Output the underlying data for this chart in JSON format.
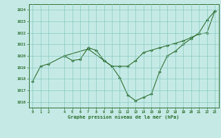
{
  "line1_x": [
    0,
    1,
    2,
    4,
    5,
    6,
    7,
    8,
    9,
    10,
    11,
    12,
    13,
    14,
    15,
    16,
    17,
    18,
    19,
    20,
    21,
    22,
    23
  ],
  "line1_y": [
    1017.8,
    1019.1,
    1019.3,
    1020.0,
    1019.6,
    1019.7,
    1020.7,
    1020.5,
    1019.6,
    1019.1,
    1018.1,
    1016.6,
    1016.1,
    1016.4,
    1016.7,
    1018.6,
    1020.0,
    1020.4,
    1021.0,
    1021.5,
    1022.0,
    1023.1,
    1023.9
  ],
  "line2_x": [
    4,
    7,
    9,
    10,
    11,
    12,
    13,
    14,
    15,
    16,
    17,
    18,
    19,
    20,
    21,
    22,
    23
  ],
  "line2_y": [
    1020.0,
    1020.6,
    1019.6,
    1019.1,
    1019.1,
    1019.1,
    1019.6,
    1020.3,
    1020.5,
    1020.7,
    1020.9,
    1021.1,
    1021.3,
    1021.6,
    1021.9,
    1022.0,
    1023.9
  ],
  "line_color": "#2d6e2d",
  "bg_color": "#c5eae6",
  "grid_color": "#88c8c0",
  "xlabel": "Graphe pression niveau de la mer (hPa)",
  "ylim": [
    1015.5,
    1024.5
  ],
  "xlim": [
    -0.5,
    23.5
  ],
  "yticks": [
    1016,
    1017,
    1018,
    1019,
    1020,
    1021,
    1022,
    1023,
    1024
  ],
  "xticks": [
    0,
    1,
    2,
    4,
    5,
    6,
    7,
    8,
    9,
    10,
    11,
    12,
    13,
    14,
    15,
    16,
    17,
    18,
    19,
    20,
    21,
    22,
    23
  ],
  "xtick_labels": [
    "0",
    "1",
    "2",
    "4",
    "5",
    "6",
    "7",
    "8",
    "9",
    "10",
    "11",
    "12",
    "13",
    "14",
    "15",
    "16",
    "17",
    "18",
    "19",
    "20",
    "21",
    "22",
    "23"
  ]
}
